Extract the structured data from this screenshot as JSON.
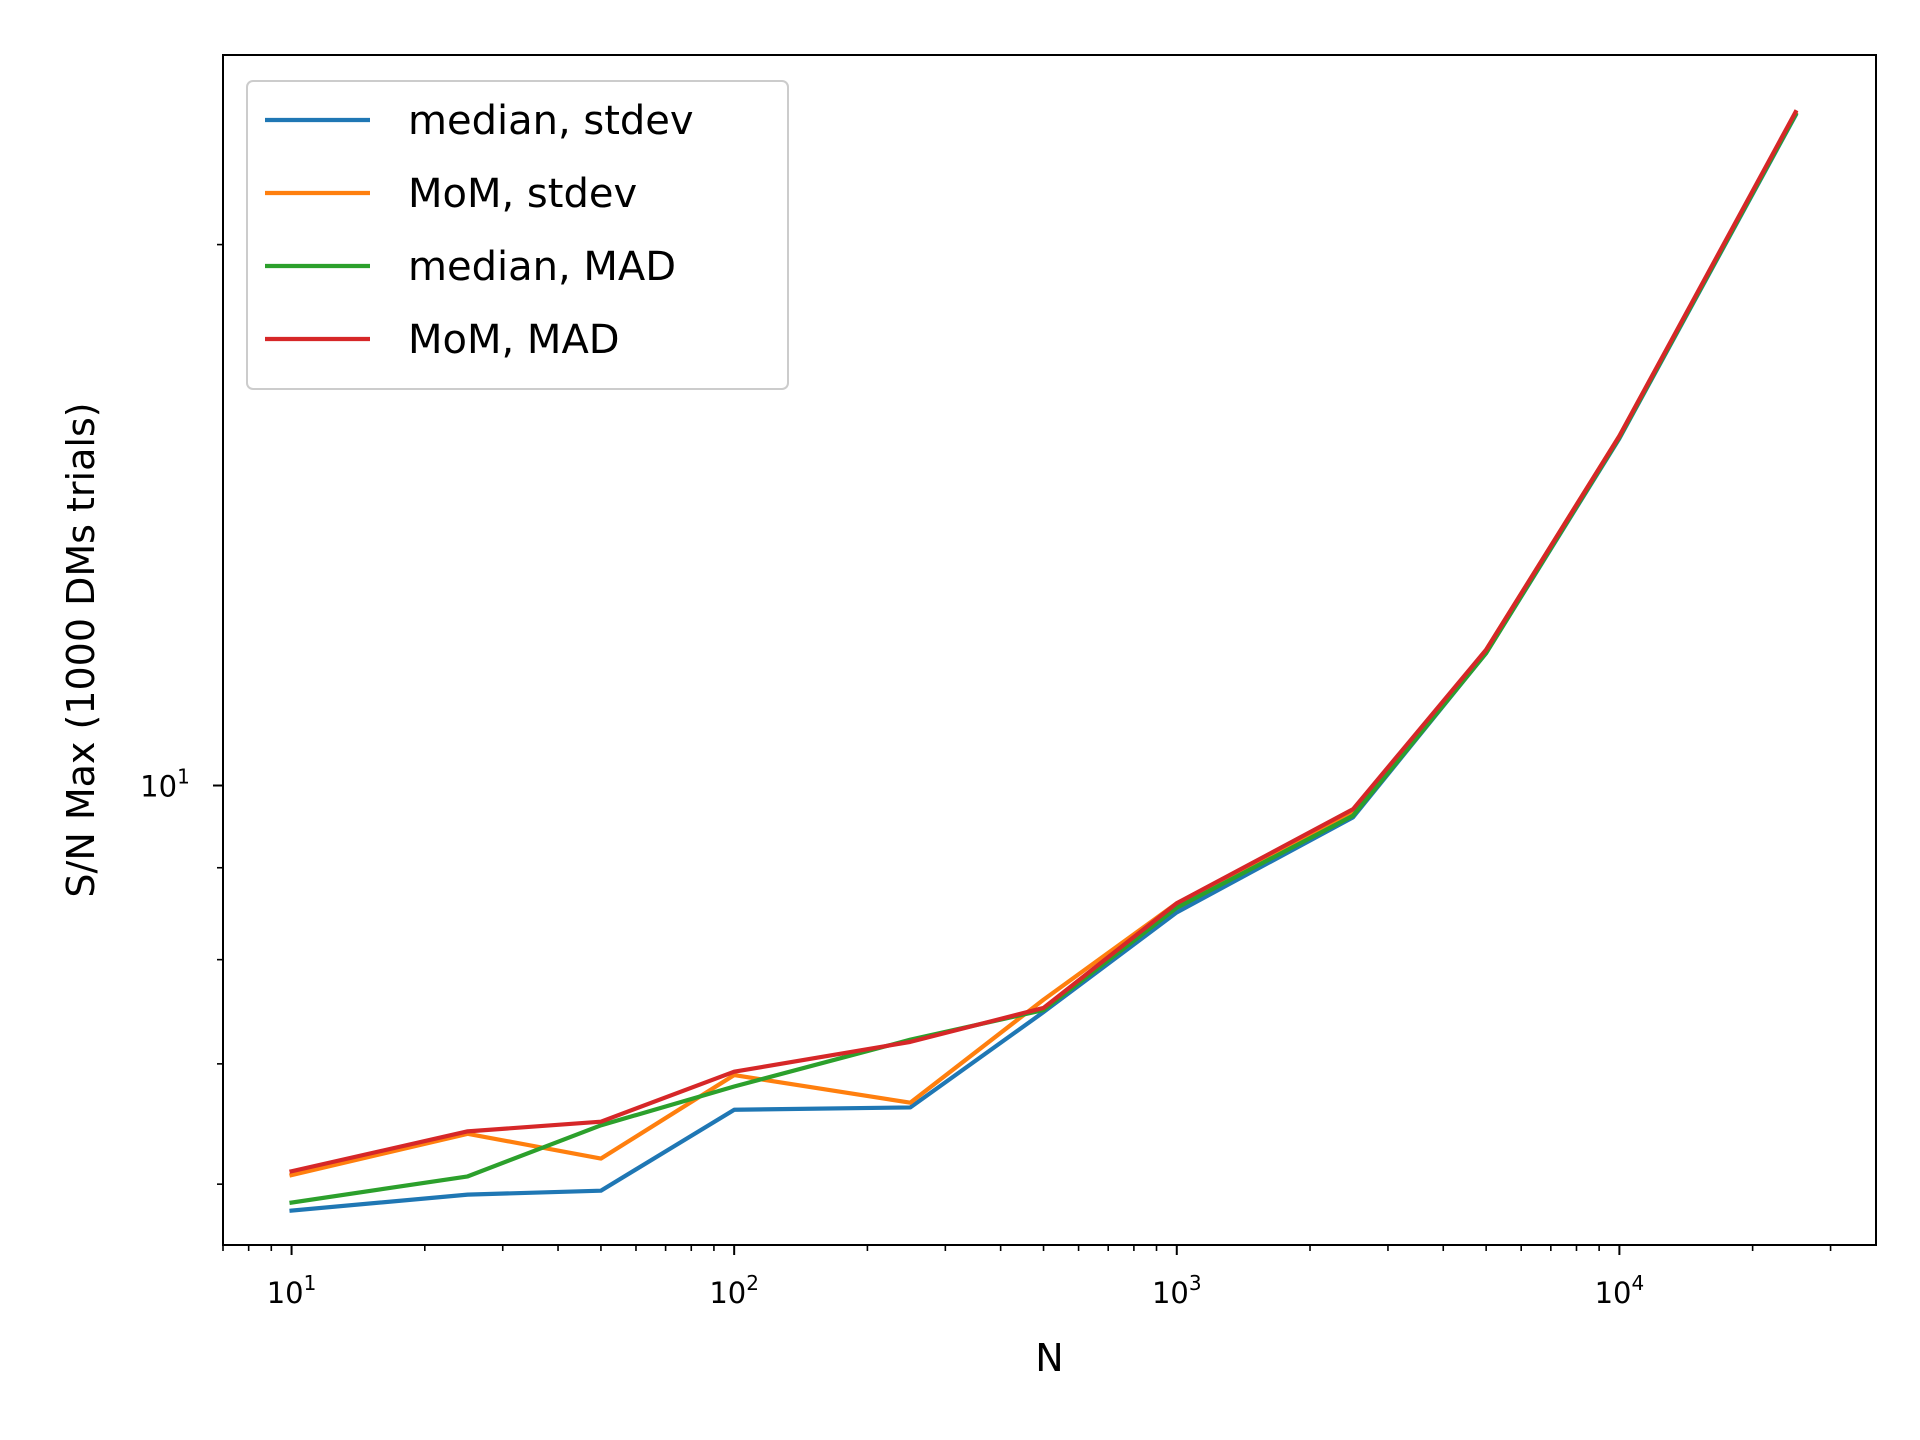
{
  "chart_data": {
    "type": "line",
    "title": "",
    "xlabel": "N",
    "ylabel": "S/N Max (1000 DMs trials)",
    "xscale": "log",
    "yscale": "log",
    "xlim": [
      7.0,
      38000
    ],
    "ylim": [
      5.55,
      25.5
    ],
    "grid": false,
    "legend_position": "top-left",
    "x_ticks": [
      {
        "value": 10,
        "base": "10",
        "exp": "1"
      },
      {
        "value": 100,
        "base": "10",
        "exp": "2"
      },
      {
        "value": 1000,
        "base": "10",
        "exp": "3"
      },
      {
        "value": 10000,
        "base": "10",
        "exp": "4"
      }
    ],
    "y_ticks": [
      {
        "value": 10,
        "base": "10",
        "exp": "1"
      }
    ],
    "x": [
      10,
      25,
      50,
      100,
      250,
      500,
      1000,
      2500,
      5000,
      10000,
      25000
    ],
    "series": [
      {
        "name": "median, stdev",
        "color": "#1f77b4",
        "values": [
          5.8,
          5.92,
          5.95,
          6.6,
          6.62,
          7.48,
          8.5,
          9.6,
          11.85,
          15.6,
          23.6
        ]
      },
      {
        "name": "MoM, stdev",
        "color": "#ff7f0e",
        "values": [
          6.07,
          6.4,
          6.2,
          6.9,
          6.66,
          7.6,
          8.6,
          9.65,
          11.9,
          15.65,
          23.65
        ]
      },
      {
        "name": "median, MAD",
        "color": "#2ca02c",
        "values": [
          5.86,
          6.06,
          6.47,
          6.8,
          7.22,
          7.5,
          8.55,
          9.62,
          11.85,
          15.62,
          23.62
        ]
      },
      {
        "name": "MoM, MAD",
        "color": "#d62728",
        "values": [
          6.1,
          6.42,
          6.5,
          6.93,
          7.2,
          7.52,
          8.6,
          9.7,
          11.9,
          15.65,
          23.7
        ]
      }
    ]
  }
}
